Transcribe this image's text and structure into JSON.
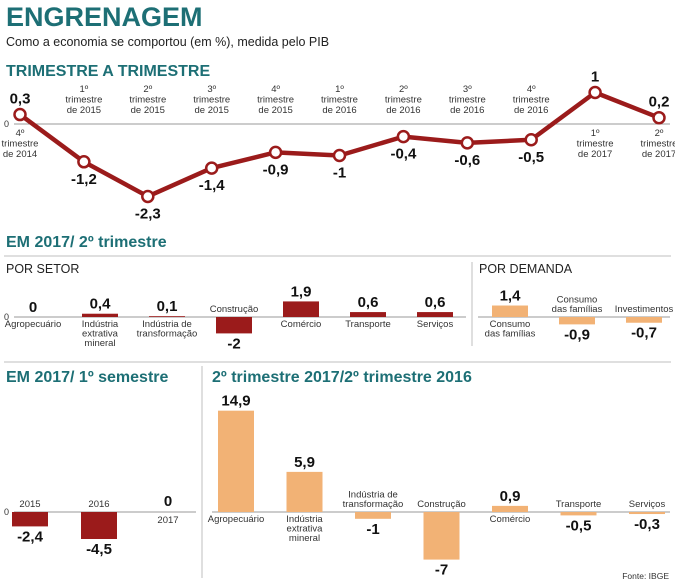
{
  "header": {
    "title": "ENGRENAGEM",
    "subtitle": "Como a economia se comportou (em %), medida pelo PIB",
    "source": "Fonte: IBGE"
  },
  "colors": {
    "dark": "#9b1b1b",
    "light": "#f2b275",
    "teal": "#1d6f75"
  },
  "chart_data": [
    {
      "type": "line",
      "title": "TRIMESTRE A TRIMESTRE",
      "zero_label": "0",
      "categories": [
        [
          "4º",
          "trimestre",
          "de 2014"
        ],
        [
          "1º",
          "trimestre",
          "de 2015"
        ],
        [
          "2º",
          "trimestre",
          "de 2015"
        ],
        [
          "3º",
          "trimestre",
          "de 2015"
        ],
        [
          "4º",
          "trimestre",
          "de 2015"
        ],
        [
          "1º",
          "trimestre",
          "de 2016"
        ],
        [
          "2º",
          "trimestre",
          "de 2016"
        ],
        [
          "3º",
          "trimestre",
          "de 2016"
        ],
        [
          "4º",
          "trimestre",
          "de 2016"
        ],
        [
          "1º",
          "trimestre",
          "de 2017"
        ],
        [
          "2º",
          "trimestre",
          "de 2017"
        ]
      ],
      "values": [
        0.3,
        -1.2,
        -2.3,
        -1.4,
        -0.9,
        -1,
        -0.4,
        -0.6,
        -0.5,
        1,
        0.2
      ],
      "labels": [
        "0,3",
        "-1,2",
        "-2,3",
        "-1,4",
        "-0,9",
        "-1",
        "-0,4",
        "-0,6",
        "-0,5",
        "1",
        "0,2"
      ]
    },
    {
      "type": "bar",
      "title": "EM 2017/ 2º trimestre",
      "subtitle": "POR SETOR",
      "zero_label": "0",
      "categories": [
        [
          "Agropecuário"
        ],
        [
          "Indústria",
          "extrativa",
          "mineral"
        ],
        [
          "Indústria de",
          "transformação"
        ],
        [
          "Construção"
        ],
        [
          "Comércio"
        ],
        [
          "Transporte"
        ],
        [
          "Serviços"
        ]
      ],
      "values": [
        0,
        0.4,
        0.1,
        -2,
        1.9,
        0.6,
        0.6
      ],
      "labels": [
        "0",
        "0,4",
        "0,1",
        "-2",
        "1,9",
        "0,6",
        "0,6"
      ]
    },
    {
      "type": "bar",
      "subtitle": "POR DEMANDA",
      "categories": [
        [
          "Consumo",
          "das famílias"
        ],
        [
          "Consumo",
          "das famílias"
        ],
        [
          "Investimentos"
        ]
      ],
      "values": [
        1.4,
        -0.9,
        -0.7
      ],
      "labels": [
        "1,4",
        "-0,9",
        "-0,7"
      ]
    },
    {
      "type": "bar",
      "title": "EM 2017/ 1º semestre",
      "zero_label": "0",
      "categories": [
        [
          "2015"
        ],
        [
          "2016"
        ],
        [
          "2017"
        ]
      ],
      "values": [
        -2.4,
        -4.5,
        0
      ],
      "labels": [
        "-2,4",
        "-4,5",
        "0"
      ]
    },
    {
      "type": "bar",
      "title": "2º trimestre 2017/2º trimestre 2016",
      "categories": [
        [
          "Agropecuário"
        ],
        [
          "Indústria",
          "extrativa",
          "mineral"
        ],
        [
          "Indústria de",
          "transformação"
        ],
        [
          "Construção"
        ],
        [
          "Comércio"
        ],
        [
          "Transporte"
        ],
        [
          "Serviços"
        ]
      ],
      "values": [
        14.9,
        5.9,
        -1,
        -7,
        0.9,
        -0.5,
        -0.3
      ],
      "labels": [
        "14,9",
        "5,9",
        "-1",
        "-7",
        "0,9",
        "-0,5",
        "-0,3"
      ]
    }
  ]
}
